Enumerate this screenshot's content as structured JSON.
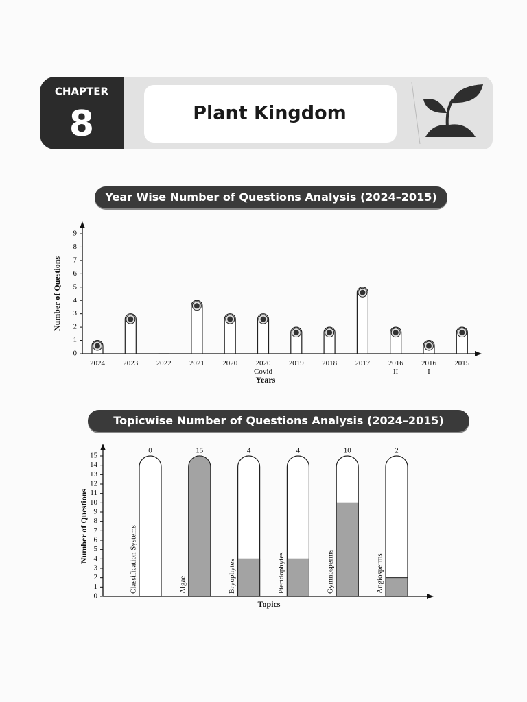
{
  "header": {
    "label": "CHAPTER",
    "number": "8",
    "title": "Plant Kingdom"
  },
  "chart_data": [
    {
      "type": "bar",
      "title": "Year Wise Number of Questions Analysis (2024–2015)",
      "x_label": "Years",
      "y_label": "Number of Questions",
      "categories": [
        "2024",
        "2023",
        "2022",
        "2021",
        "2020",
        "2020\nCovid",
        "2019",
        "2018",
        "2017",
        "2016\nII",
        "2016\nI",
        "2015"
      ],
      "values": [
        1,
        3,
        0,
        4,
        3,
        3,
        2,
        2,
        5,
        2,
        1,
        2
      ],
      "color": "#ffffff",
      "ylim": [
        0,
        9
      ],
      "yticks": [
        0,
        1,
        2,
        3,
        4,
        5,
        6,
        7,
        8,
        9
      ],
      "grid": false
    },
    {
      "type": "bar",
      "title": "Topicwise Number of Questions Analysis (2024–2015)",
      "x_label": "Topics",
      "y_label": "Number of Questions",
      "categories": [
        "Classification Systems",
        "Algae",
        "Bryophytes",
        "Pteridophytes",
        "Gymnosperms",
        "Angiosperms"
      ],
      "values": [
        0,
        15,
        4,
        4,
        10,
        2
      ],
      "color": "#a3a3a3",
      "ylim": [
        0,
        15
      ],
      "yticks": [
        0,
        1,
        2,
        3,
        4,
        5,
        6,
        7,
        8,
        9,
        10,
        11,
        12,
        13,
        14,
        15
      ],
      "grid": false
    }
  ]
}
